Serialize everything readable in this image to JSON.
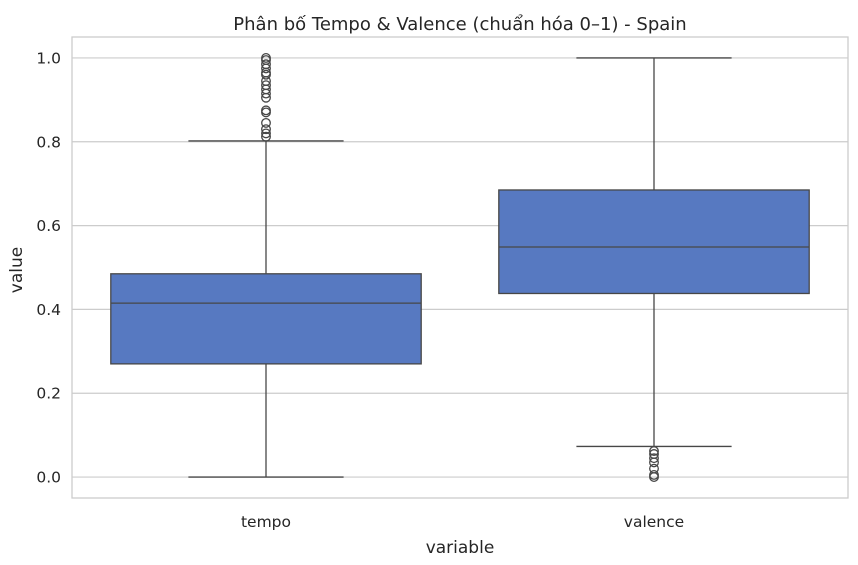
{
  "chart_data": {
    "type": "box",
    "title": "Phân bố Tempo & Valence (chuẩn hóa 0–1) - Spain",
    "xlabel": "variable",
    "ylabel": "value",
    "ylim": [
      -0.05,
      1.05
    ],
    "yticks": [
      "0.0",
      "0.2",
      "0.4",
      "0.6",
      "0.8",
      "1.0"
    ],
    "grid": "horizontal",
    "categories": [
      "tempo",
      "valence"
    ],
    "boxes": [
      {
        "name": "tempo",
        "whisker_low": 0.0,
        "q1": 0.27,
        "median": 0.415,
        "q3": 0.485,
        "whisker_high": 0.802,
        "outliers": [
          0.812,
          0.82,
          0.83,
          0.845,
          0.87,
          0.875,
          0.905,
          0.915,
          0.925,
          0.935,
          0.945,
          0.96,
          0.965,
          0.975,
          0.985,
          0.995,
          1.0
        ]
      },
      {
        "name": "valence",
        "whisker_low": 0.073,
        "q1": 0.438,
        "median": 0.549,
        "q3": 0.685,
        "whisker_high": 1.0,
        "outliers": [
          0.0,
          0.005,
          0.02,
          0.035,
          0.045,
          0.055,
          0.062
        ]
      }
    ],
    "colors": {
      "box": "#5779c1",
      "line": "#474747",
      "grid": "#cccccc",
      "spine": "#cccccc"
    }
  }
}
